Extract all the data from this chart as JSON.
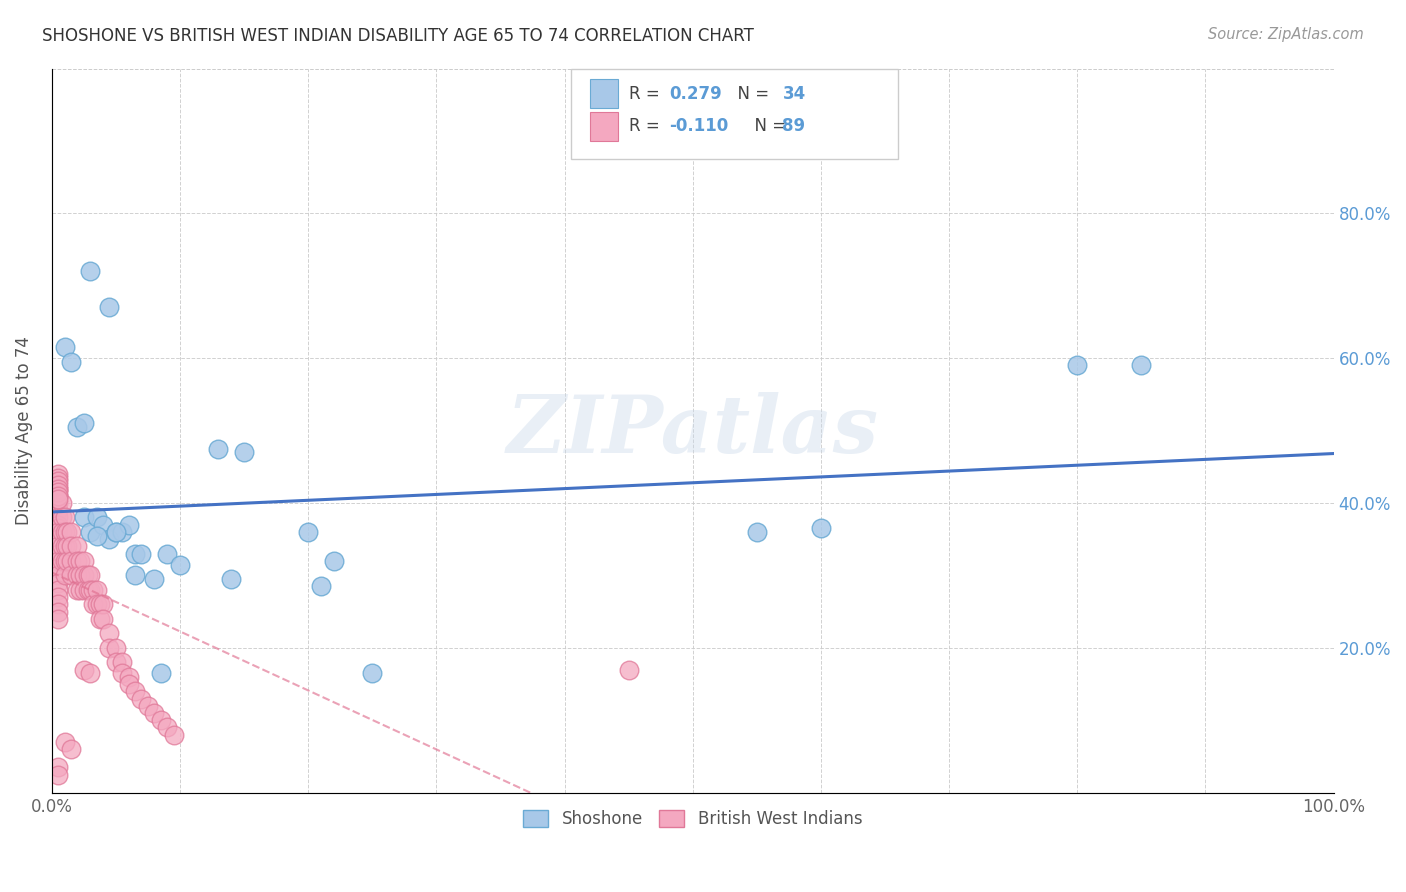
{
  "title": "SHOSHONE VS BRITISH WEST INDIAN DISABILITY AGE 65 TO 74 CORRELATION CHART",
  "source": "Source: ZipAtlas.com",
  "ylabel": "Disability Age 65 to 74",
  "xlim": [
    0,
    100
  ],
  "ylim": [
    0,
    100
  ],
  "xticks": [
    0,
    10,
    20,
    30,
    40,
    50,
    60,
    70,
    80,
    90,
    100
  ],
  "yticks": [
    0,
    20,
    40,
    60,
    80
  ],
  "xticklabels": [
    "0.0%",
    "",
    "",
    "",
    "",
    "",
    "",
    "",
    "",
    "",
    "100.0%"
  ],
  "yticklabels_right": [
    "",
    "20.0%",
    "40.0%",
    "60.0%",
    "80.0%"
  ],
  "shoshone_color": "#a8c8e8",
  "bwi_color": "#f4a8c0",
  "shoshone_edge": "#6aaad4",
  "bwi_edge": "#e07898",
  "trend_blue": "#4472c4",
  "trend_pink": "#e07090",
  "R_shoshone": 0.279,
  "N_shoshone": 34,
  "R_bwi": -0.11,
  "N_bwi": 89,
  "watermark": "ZIPatlas",
  "shoshone_x": [
    1.0,
    1.5,
    2.0,
    2.5,
    3.0,
    3.5,
    4.0,
    4.5,
    5.0,
    5.5,
    6.0,
    6.5,
    7.0,
    8.0,
    9.0,
    10.0,
    13.0,
    14.0,
    15.0,
    20.0,
    21.0,
    22.0,
    25.0,
    55.0,
    60.0,
    80.0,
    85.0,
    3.0,
    4.5,
    2.5,
    3.5,
    5.0,
    6.5,
    8.5
  ],
  "shoshone_y": [
    61.5,
    59.5,
    50.5,
    38.0,
    36.0,
    38.0,
    37.0,
    35.0,
    36.0,
    36.0,
    37.0,
    33.0,
    33.0,
    29.5,
    33.0,
    31.5,
    47.5,
    29.5,
    47.0,
    36.0,
    28.5,
    32.0,
    16.5,
    36.0,
    36.5,
    59.0,
    59.0,
    72.0,
    67.0,
    51.0,
    35.5,
    36.0,
    30.0,
    16.5
  ],
  "bwi_x": [
    0.5,
    0.5,
    0.5,
    0.5,
    0.5,
    0.5,
    0.5,
    0.5,
    0.5,
    0.5,
    0.5,
    0.5,
    0.5,
    0.5,
    0.5,
    0.5,
    0.5,
    0.5,
    0.5,
    0.5,
    0.8,
    0.8,
    0.8,
    0.8,
    0.8,
    1.0,
    1.0,
    1.0,
    1.0,
    1.0,
    1.2,
    1.2,
    1.2,
    1.5,
    1.5,
    1.5,
    1.5,
    2.0,
    2.0,
    2.0,
    2.0,
    2.2,
    2.2,
    2.2,
    2.5,
    2.5,
    2.5,
    2.8,
    2.8,
    3.0,
    3.0,
    3.2,
    3.2,
    3.5,
    3.5,
    3.8,
    3.8,
    4.0,
    4.0,
    4.5,
    4.5,
    5.0,
    5.0,
    5.5,
    5.5,
    6.0,
    6.0,
    6.5,
    7.0,
    7.5,
    8.0,
    8.5,
    9.0,
    9.5,
    45.0,
    1.0,
    1.5,
    2.5,
    3.0,
    0.5,
    0.5,
    0.5,
    0.5,
    0.5,
    0.5,
    0.5,
    0.5,
    0.5,
    0.5
  ],
  "bwi_y": [
    42.0,
    41.0,
    40.0,
    39.0,
    38.0,
    37.0,
    36.5,
    36.0,
    35.0,
    34.0,
    33.0,
    32.0,
    31.0,
    30.0,
    29.0,
    28.0,
    27.0,
    26.0,
    25.0,
    24.0,
    40.0,
    38.0,
    36.0,
    34.0,
    32.0,
    38.0,
    36.0,
    34.0,
    32.0,
    30.0,
    36.0,
    34.0,
    32.0,
    36.0,
    34.0,
    32.0,
    30.0,
    34.0,
    32.0,
    30.0,
    28.0,
    32.0,
    30.0,
    28.0,
    32.0,
    30.0,
    28.0,
    30.0,
    28.0,
    30.0,
    28.0,
    28.0,
    26.0,
    28.0,
    26.0,
    26.0,
    24.0,
    26.0,
    24.0,
    22.0,
    20.0,
    20.0,
    18.0,
    18.0,
    16.5,
    16.0,
    15.0,
    14.0,
    13.0,
    12.0,
    11.0,
    10.0,
    9.0,
    8.0,
    17.0,
    7.0,
    6.0,
    17.0,
    16.5,
    44.0,
    43.5,
    43.0,
    42.5,
    42.0,
    41.5,
    41.0,
    40.5,
    3.5,
    2.5
  ]
}
